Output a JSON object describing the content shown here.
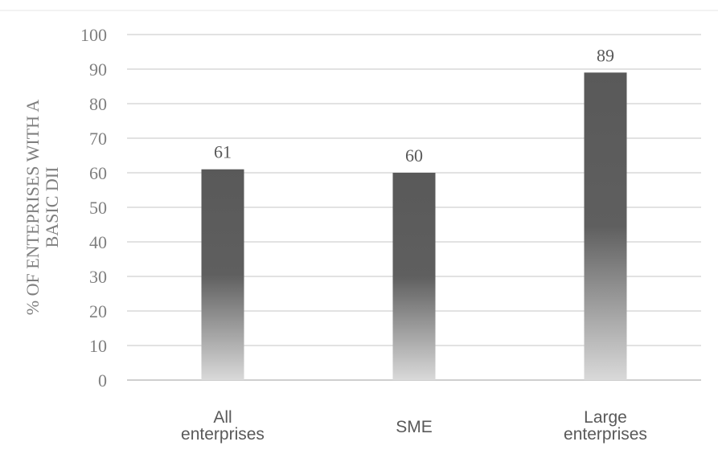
{
  "chart_data": {
    "type": "bar",
    "categories": [
      [
        "All",
        "enterprises"
      ],
      [
        "SME"
      ],
      [
        "Large",
        "enterprises"
      ]
    ],
    "values": [
      61,
      60,
      89
    ],
    "data_labels": [
      "61",
      "60",
      "89"
    ],
    "title": "",
    "xlabel": "",
    "ylabel": [
      "% OF ENTEPRISES WITH  A",
      "BASIC DII"
    ],
    "ylim": [
      0,
      100
    ],
    "yticks": [
      0,
      10,
      20,
      30,
      40,
      50,
      60,
      70,
      80,
      90,
      100
    ],
    "grid": true,
    "legend": "none",
    "colors": {
      "bar_top": "#595959",
      "bar_mid": "#5f5f5f",
      "bar_bottom": "#d9d9d9",
      "gridline": "#d9d9d9",
      "axis": "#bfbfbf",
      "tick_text": "#7f7f7f",
      "label_text": "#595959"
    }
  }
}
